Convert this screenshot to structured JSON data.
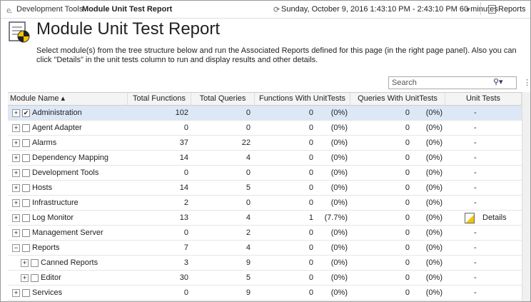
{
  "breadcrumb": {
    "items": [
      "Development Tools",
      "Module Unit Test Report"
    ]
  },
  "time_range": "Sunday, October 9, 2016 1:43:10 PM - 2:43:10 PM 60 minutes",
  "reports_button": "Reports",
  "header": {
    "title": "Module Unit Test Report",
    "description": "Select module(s) from the tree structure below and run the Associated Reports defined for this page (in the right page panel). Also you can click \"Details\" in the unit tests column to run and display results and other details."
  },
  "search": {
    "placeholder": "Search"
  },
  "table": {
    "columns": [
      "Module Name",
      "Total Functions",
      "Total Queries",
      "Functions With UnitTests",
      "Queries With UnitTests",
      "Unit Tests"
    ],
    "rows": [
      [
        "Administration",
        102,
        0,
        0,
        "(0%)",
        0,
        "(0%)",
        "-"
      ],
      [
        "Agent Adapter",
        0,
        0,
        0,
        "(0%)",
        0,
        "(0%)",
        "-"
      ],
      [
        "Alarms",
        37,
        22,
        0,
        "(0%)",
        0,
        "(0%)",
        "-"
      ],
      [
        "Dependency Mapping",
        14,
        4,
        0,
        "(0%)",
        0,
        "(0%)",
        "-"
      ],
      [
        "Development Tools",
        0,
        0,
        0,
        "(0%)",
        0,
        "(0%)",
        "-"
      ],
      [
        "Hosts",
        14,
        5,
        0,
        "(0%)",
        0,
        "(0%)",
        "-"
      ],
      [
        "Infrastructure",
        2,
        0,
        0,
        "(0%)",
        0,
        "(0%)",
        "-"
      ],
      [
        "Log Monitor",
        13,
        4,
        1,
        "(7.7%)",
        0,
        "(0%)",
        "Details"
      ],
      [
        "Management Server",
        0,
        2,
        0,
        "(0%)",
        0,
        "(0%)",
        "-"
      ],
      [
        "Reports",
        7,
        4,
        0,
        "(0%)",
        0,
        "(0%)",
        "-"
      ],
      [
        "Canned Reports",
        3,
        9,
        0,
        "(0%)",
        0,
        "(0%)",
        "-"
      ],
      [
        "Editor",
        30,
        5,
        0,
        "(0%)",
        0,
        "(0%)",
        "-"
      ],
      [
        "Services",
        0,
        9,
        0,
        "(0%)",
        0,
        "(0%)",
        "-"
      ]
    ]
  }
}
